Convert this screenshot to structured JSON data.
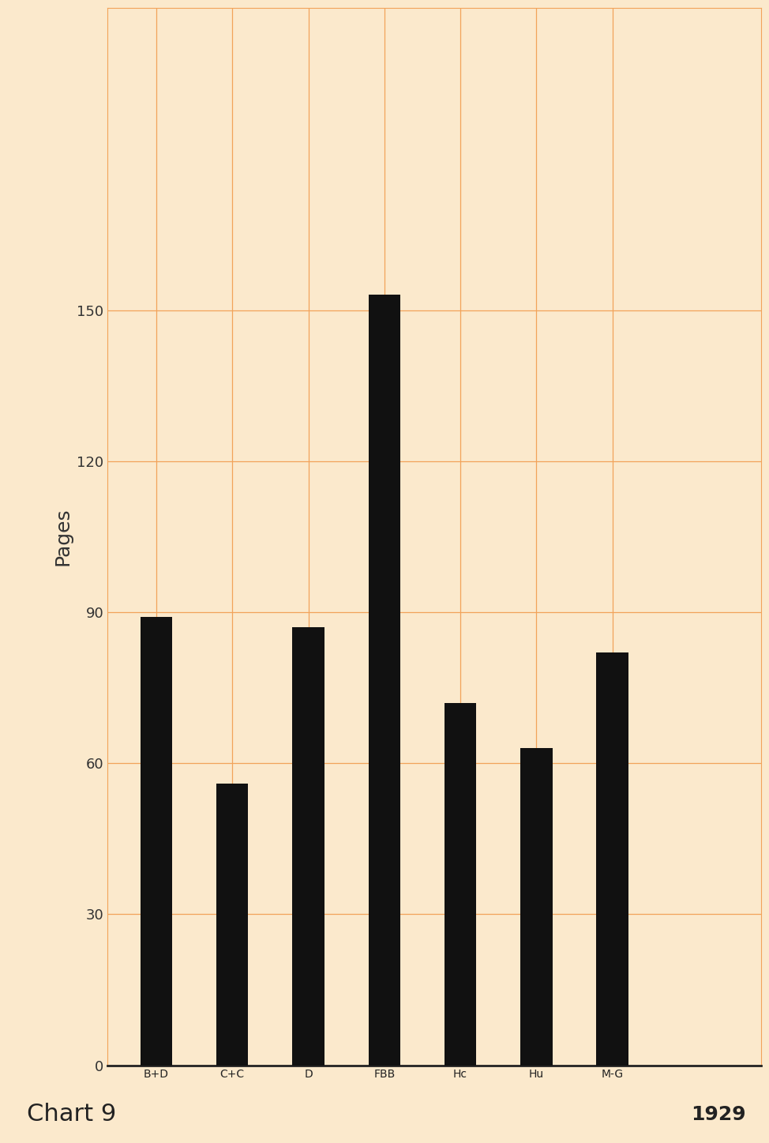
{
  "chart_data": {
    "type": "bar",
    "title": "Chart 9",
    "subtitle": "1929",
    "y_label": "Pages",
    "categories": [
      "B+D",
      "C+C",
      "D",
      "FBB",
      "Hc",
      "Hu",
      "M-G"
    ],
    "values": [
      89,
      56,
      87,
      153,
      72,
      63,
      82
    ],
    "color": "#111111",
    "ylim": [
      0,
      210
    ],
    "yticks": [
      0,
      30,
      60,
      90,
      120,
      150
    ],
    "grid": true
  }
}
